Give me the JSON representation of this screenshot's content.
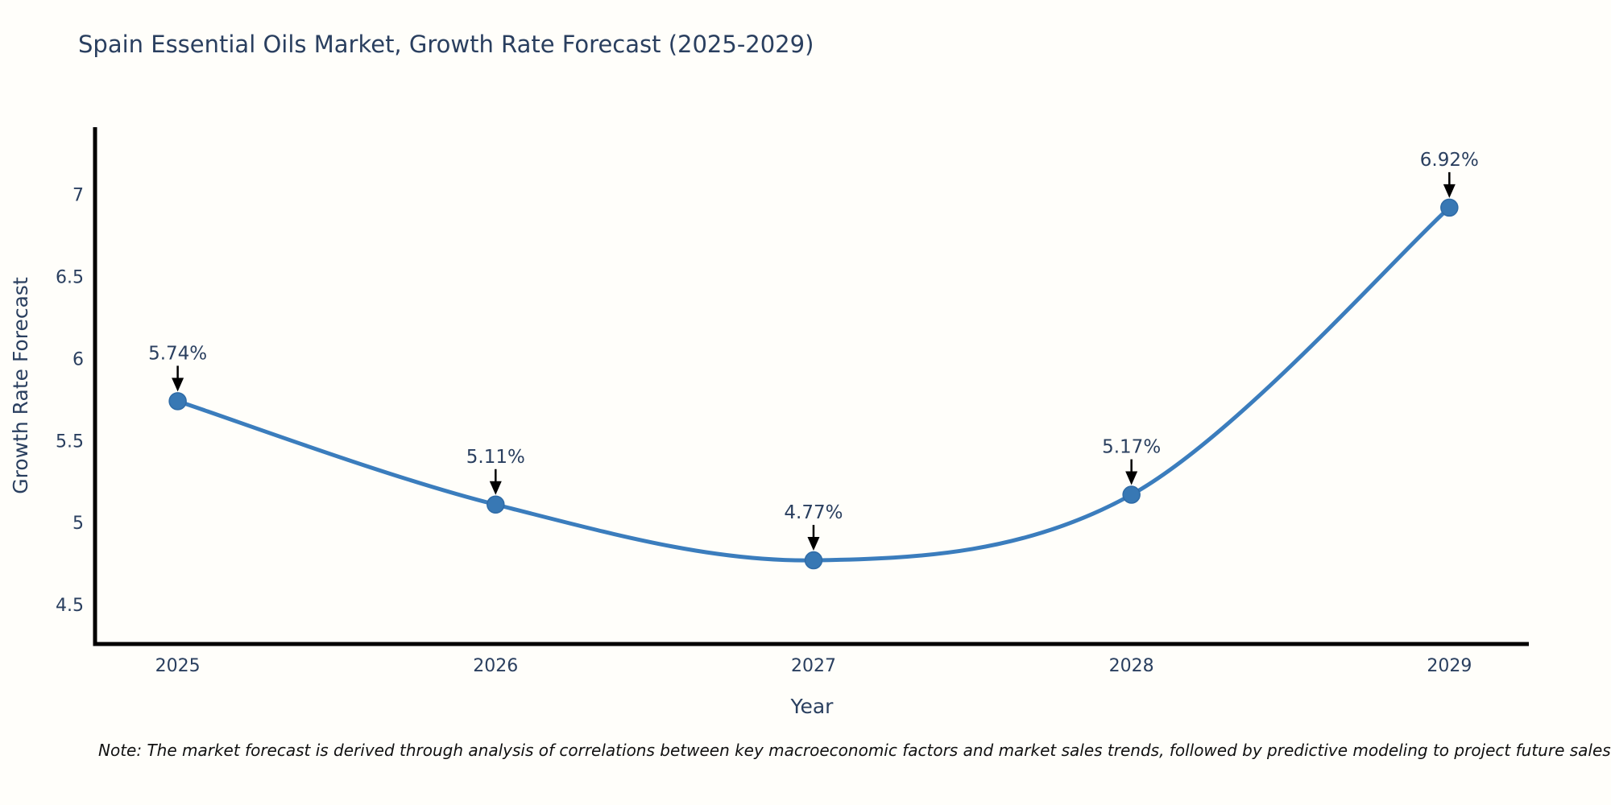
{
  "title": "Spain Essential Oils Market, Growth Rate Forecast (2025-2029)",
  "note": "Note: The market forecast is derived through analysis of correlations between key macroeconomic factors and market sales trends, followed by predictive modeling to project future sales",
  "chart_data": {
    "type": "line",
    "title": "Spain Essential Oils Market, Growth Rate Forecast (2025-2029)",
    "xlabel": "Year",
    "ylabel": "Growth Rate Forecast",
    "x": [
      2025,
      2026,
      2027,
      2028,
      2029
    ],
    "y": [
      5.74,
      5.11,
      4.77,
      5.17,
      6.92
    ],
    "point_labels": [
      "5.74%",
      "5.11%",
      "4.77%",
      "5.17%",
      "6.92%"
    ],
    "xticks": [
      2025,
      2026,
      2027,
      2028,
      2029
    ],
    "xtick_labels": [
      "2025",
      "2026",
      "2027",
      "2028",
      "2029"
    ],
    "yticks": [
      4.5,
      5,
      5.5,
      6,
      6.5,
      7
    ],
    "ytick_labels": [
      "4.5",
      "5",
      "5.5",
      "6",
      "6.5",
      "7"
    ],
    "xlim": [
      2024.74,
      2029.25
    ],
    "ylim": [
      4.26,
      7.41
    ],
    "grid": false,
    "legend": "none",
    "line_shape": "spline",
    "colors": {
      "line": "#3b7dbd",
      "marker": "#3878b4",
      "marker_edge": "#2f6ba6",
      "axis": "#000000",
      "text": "#2a3f5f",
      "annotation_text": "#2a3f5f",
      "arrow": "#000000"
    }
  }
}
